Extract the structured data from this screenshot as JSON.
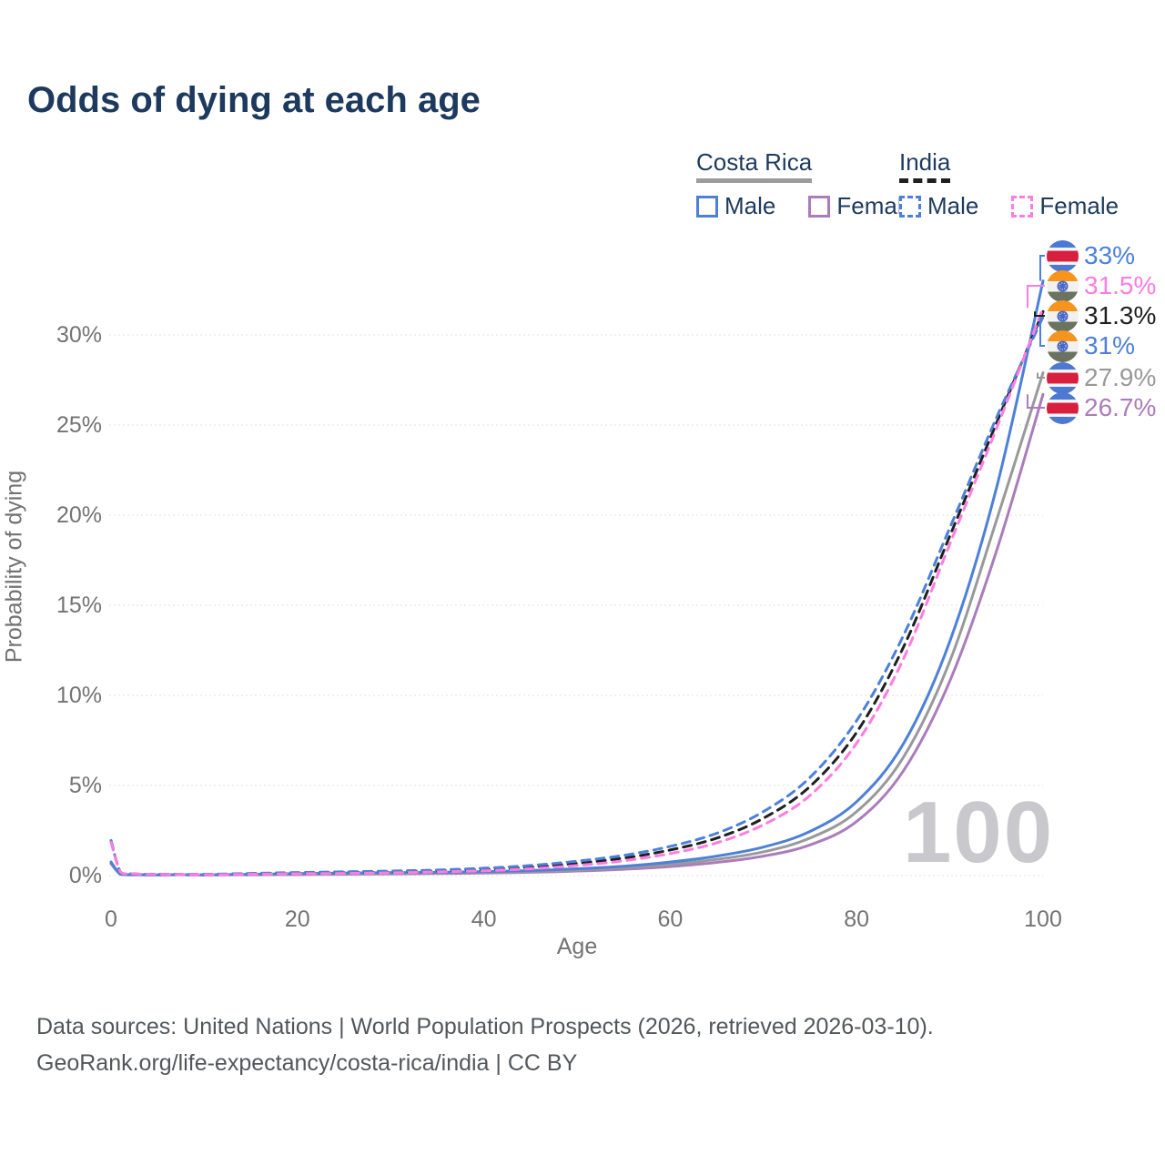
{
  "title": "Odds of dying at each age",
  "watermark": "100",
  "legend": {
    "groups": [
      {
        "country": "Costa Rica",
        "line_style": "solid",
        "underline_color": "#9b9b9b",
        "items": [
          {
            "label": "Male",
            "color": "#4c80da"
          },
          {
            "label": "Female",
            "color": "#ab7cbb"
          }
        ]
      },
      {
        "country": "India",
        "line_style": "dashed",
        "underline_color": "#1f1f1f",
        "items": [
          {
            "label": "Male",
            "color": "#4c80da"
          },
          {
            "label": "Female",
            "color": "#ff7ce0"
          }
        ]
      }
    ]
  },
  "chart_data": {
    "type": "line",
    "title": "Odds of dying at each age",
    "xlabel": "Age",
    "ylabel": "Probability of dying",
    "xlim": [
      0,
      100
    ],
    "ylim_percent": [
      0,
      33
    ],
    "x_ticks": [
      0,
      20,
      40,
      60,
      80,
      100
    ],
    "y_tick_percents": [
      0,
      5,
      10,
      15,
      20,
      25,
      30
    ],
    "y_tick_labels": [
      "0%",
      "5%",
      "10%",
      "15%",
      "20%",
      "25%",
      "30%"
    ],
    "grid": true,
    "legend_position": "top-right",
    "x": [
      0,
      1,
      2,
      5,
      10,
      15,
      20,
      25,
      30,
      35,
      40,
      45,
      50,
      55,
      60,
      65,
      70,
      75,
      80,
      85,
      90,
      95,
      100
    ],
    "series": [
      {
        "name": "Costa Rica Male",
        "country": "Costa Rica",
        "sex": "Male",
        "style": "solid",
        "color": "#4c80da",
        "flag": "costa-rica",
        "end_label": "33%",
        "values": [
          0.75,
          0.08,
          0.05,
          0.04,
          0.04,
          0.07,
          0.11,
          0.14,
          0.16,
          0.18,
          0.22,
          0.28,
          0.38,
          0.52,
          0.75,
          1.08,
          1.58,
          2.45,
          4.1,
          7.3,
          13.0,
          21.5,
          33.0
        ]
      },
      {
        "name": "Costa Rica Female",
        "country": "Costa Rica",
        "sex": "Female",
        "style": "solid",
        "color": "#ab7cbb",
        "flag": "costa-rica",
        "end_label": "26.7%",
        "values": [
          0.65,
          0.07,
          0.04,
          0.03,
          0.03,
          0.04,
          0.05,
          0.07,
          0.09,
          0.11,
          0.14,
          0.18,
          0.25,
          0.35,
          0.5,
          0.73,
          1.08,
          1.7,
          3.0,
          5.8,
          10.8,
          18.0,
          26.7
        ]
      },
      {
        "name": "Costa Rica Both sexes",
        "country": "Costa Rica",
        "sex": "Both",
        "style": "solid",
        "color": "#999999",
        "flag": "costa-rica",
        "end_label": "27.9%",
        "values": [
          0.7,
          0.075,
          0.045,
          0.035,
          0.035,
          0.055,
          0.08,
          0.1,
          0.12,
          0.15,
          0.18,
          0.23,
          0.31,
          0.44,
          0.62,
          0.9,
          1.32,
          2.08,
          3.55,
          6.55,
          11.9,
          19.7,
          27.9
        ]
      },
      {
        "name": "India Male",
        "country": "India",
        "sex": "Male",
        "style": "dashed",
        "color": "#4c80da",
        "flag": "india",
        "end_label": "31%",
        "values": [
          1.95,
          0.2,
          0.1,
          0.07,
          0.07,
          0.12,
          0.17,
          0.21,
          0.25,
          0.31,
          0.41,
          0.56,
          0.8,
          1.12,
          1.62,
          2.35,
          3.55,
          5.45,
          8.6,
          13.3,
          19.3,
          25.4,
          31.0
        ]
      },
      {
        "name": "India Female",
        "country": "India",
        "sex": "Female",
        "style": "dashed",
        "color": "#ff7ce0",
        "flag": "india",
        "end_label": "31.5%",
        "values": [
          1.85,
          0.2,
          0.1,
          0.06,
          0.05,
          0.07,
          0.1,
          0.12,
          0.15,
          0.2,
          0.27,
          0.38,
          0.56,
          0.82,
          1.22,
          1.82,
          2.82,
          4.45,
          7.35,
          12.0,
          18.4,
          24.8,
          31.5
        ]
      },
      {
        "name": "India Both sexes",
        "country": "India",
        "sex": "Both",
        "style": "dashed",
        "color": "#1f1f1f",
        "flag": "india",
        "end_label": "31.3%",
        "values": [
          1.9,
          0.2,
          0.1,
          0.065,
          0.06,
          0.1,
          0.13,
          0.17,
          0.2,
          0.26,
          0.34,
          0.47,
          0.68,
          0.97,
          1.42,
          2.08,
          3.18,
          4.95,
          7.95,
          12.65,
          18.85,
          25.1,
          31.3
        ]
      }
    ]
  },
  "flags": {
    "costa-rica": {
      "stripes": [
        "#4d79d3",
        "#f4f6f8",
        "#d81f3d",
        "#f4f6f8",
        "#4d79d3"
      ]
    },
    "india": {
      "stripes": [
        "#f7941e",
        "#f1f1ef",
        "#6a7360"
      ],
      "chakra_color": "#4968c8"
    }
  },
  "footer": {
    "line1": "Data sources: United Nations | World Population Prospects (2026, retrieved 2026-03-10).",
    "line2": "GeoRank.org/life-expectancy/costa-rica/india | CC BY"
  }
}
